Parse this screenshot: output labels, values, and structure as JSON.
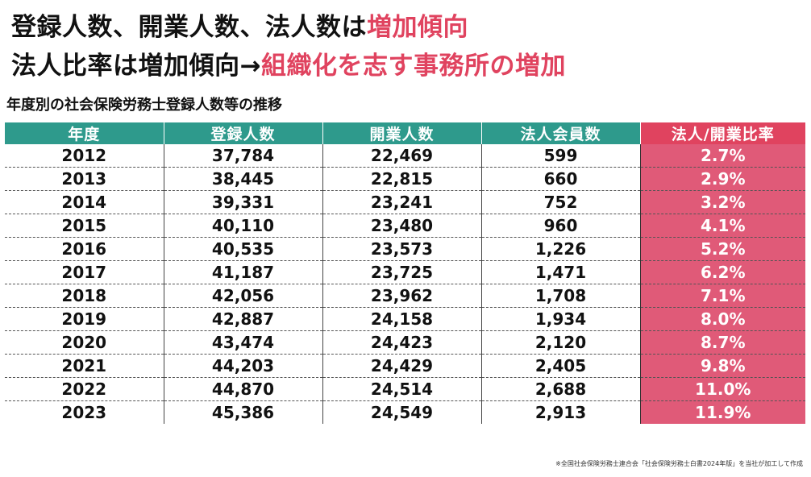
{
  "headline": {
    "line1_main": "登録人数、開業人数、法人数は",
    "line1_accent": "増加傾向",
    "line2_main": "法人比率は増加傾向→",
    "line2_accent": "組織化を志す事務所の増加"
  },
  "subtitle": "年度別の社会保険労務士登録人数等の推移",
  "table": {
    "headers": [
      "年度",
      "登録人数",
      "開業人数",
      "法人会員数",
      "法人/開業比率"
    ],
    "rows": [
      [
        "2012",
        "37,784",
        "22,469",
        "599",
        "2.7%"
      ],
      [
        "2013",
        "38,445",
        "22,815",
        "660",
        "2.9%"
      ],
      [
        "2014",
        "39,331",
        "23,241",
        "752",
        "3.2%"
      ],
      [
        "2015",
        "40,110",
        "23,480",
        "960",
        "4.1%"
      ],
      [
        "2016",
        "40,535",
        "23,573",
        "1,226",
        "5.2%"
      ],
      [
        "2017",
        "41,187",
        "23,725",
        "1,471",
        "6.2%"
      ],
      [
        "2018",
        "42,056",
        "23,962",
        "1,708",
        "7.1%"
      ],
      [
        "2019",
        "42,887",
        "24,158",
        "1,934",
        "8.0%"
      ],
      [
        "2020",
        "43,474",
        "24,423",
        "2,120",
        "8.7%"
      ],
      [
        "2021",
        "44,203",
        "24,429",
        "2,405",
        "9.8%"
      ],
      [
        "2022",
        "44,870",
        "24,514",
        "2,688",
        "11.0%"
      ],
      [
        "2023",
        "45,386",
        "24,549",
        "2,913",
        "11.9%"
      ]
    ]
  },
  "footnote": "※全国社会保険労務士連合会「社会保険労務士白書2024年版」を当社が加工して作成",
  "colors": {
    "accent": "#e0435f",
    "header_teal": "#2e9a8c",
    "rate_cell": "#e05a78"
  }
}
